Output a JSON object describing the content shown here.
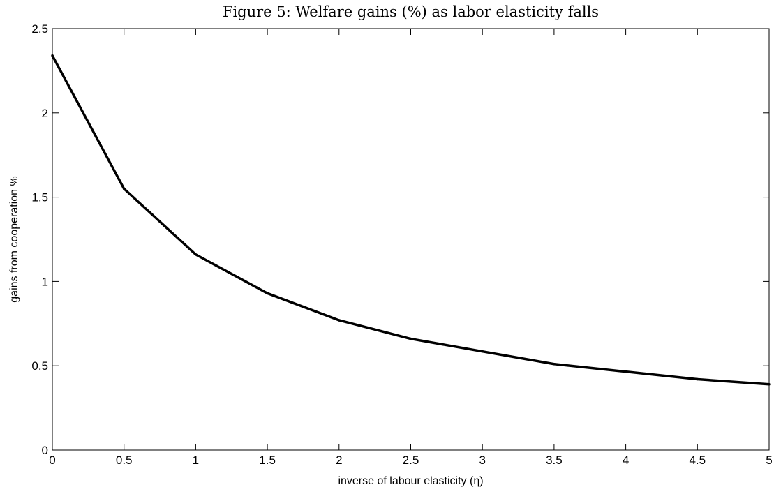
{
  "chart_data": {
    "type": "line",
    "title": "Figure 5: Welfare gains (%) as labor elasticity falls",
    "xlabel": "inverse of labour elasticity (η)",
    "ylabel": "gains from cooperation %",
    "xlim": [
      0,
      5
    ],
    "ylim": [
      0,
      2.5
    ],
    "x_ticks": [
      "0",
      "0.5",
      "1",
      "1.5",
      "2",
      "2.5",
      "3",
      "3.5",
      "4",
      "4.5",
      "5"
    ],
    "y_ticks": [
      "0",
      "0.5",
      "1",
      "1.5",
      "2",
      "2.5"
    ],
    "grid": false,
    "legend": false,
    "series": [
      {
        "color": "#000000",
        "x": [
          0,
          0.5,
          1,
          1.5,
          2,
          2.5,
          3,
          3.5,
          4,
          4.5,
          5
        ],
        "y": [
          2.34,
          1.55,
          1.16,
          0.93,
          0.77,
          0.66,
          0.585,
          0.51,
          0.465,
          0.42,
          0.39
        ]
      }
    ]
  }
}
